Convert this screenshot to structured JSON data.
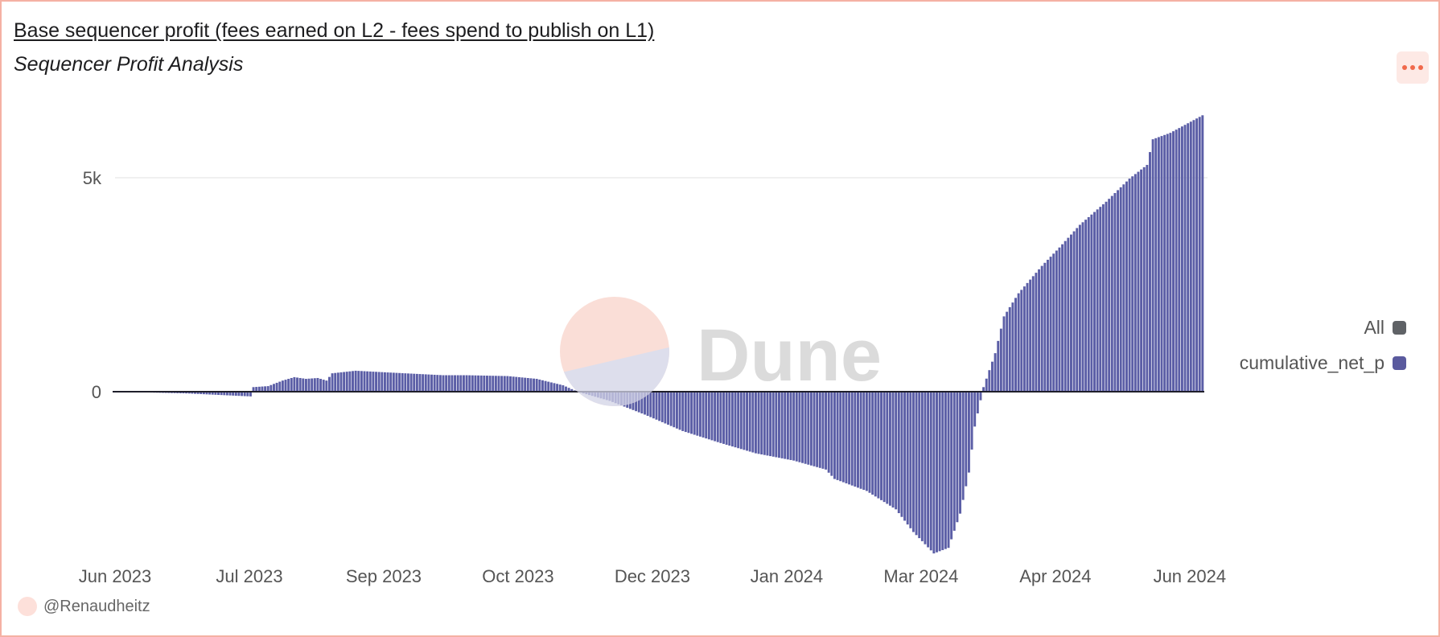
{
  "header": {
    "title": "Base sequencer profit (fees earned on L2 - fees spend to publish on L1)",
    "subtitle": "Sequencer Profit Analysis",
    "menu_icon": "more-horizontal-icon"
  },
  "legend": [
    {
      "label": "All",
      "color": "#5f6266"
    },
    {
      "label": "cumulative_net_p",
      "color": "#5a5a9e"
    }
  ],
  "footer": {
    "author": "@Renaudheitz"
  },
  "watermark": {
    "text": "Dune"
  },
  "chart_data": {
    "type": "bar",
    "title": "Base sequencer profit (fees earned on L2 - fees spend to publish on L1)",
    "xlabel": "",
    "ylabel": "",
    "x_start": "2023-06-01",
    "x_interval": "day",
    "days": 373,
    "ylim": [
      -3800,
      6600
    ],
    "grid": true,
    "legend_position": "right",
    "y_ticks": [
      {
        "value": 0,
        "label": "0"
      },
      {
        "value": 5000,
        "label": "5k"
      }
    ],
    "x_ticks": [
      {
        "day": 0,
        "label": "Jun 2023"
      },
      {
        "day": 46,
        "label": "Jul 2023"
      },
      {
        "day": 92,
        "label": "Sep 2023"
      },
      {
        "day": 138,
        "label": "Oct 2023"
      },
      {
        "day": 184,
        "label": "Dec 2023"
      },
      {
        "day": 230,
        "label": "Jan 2024"
      },
      {
        "day": 276,
        "label": "Mar 2024"
      },
      {
        "day": 322,
        "label": "Apr 2024"
      },
      {
        "day": 368,
        "label": "Jun 2024"
      }
    ],
    "series": [
      {
        "name": "cumulative_net_p",
        "color": "#5b5ea6",
        "keypoints_day_value": [
          [
            0,
            0
          ],
          [
            24,
            -40
          ],
          [
            46,
            -110
          ],
          [
            47,
            107
          ],
          [
            52,
            130
          ],
          [
            57,
            260
          ],
          [
            61,
            340
          ],
          [
            65,
            300
          ],
          [
            69,
            320
          ],
          [
            72,
            260
          ],
          [
            74,
            430
          ],
          [
            82,
            490
          ],
          [
            93,
            450
          ],
          [
            112,
            385
          ],
          [
            120,
            385
          ],
          [
            134,
            365
          ],
          [
            144,
            300
          ],
          [
            153,
            150
          ],
          [
            158,
            0
          ],
          [
            169,
            -215
          ],
          [
            181,
            -535
          ],
          [
            194,
            -920
          ],
          [
            207,
            -1200
          ],
          [
            219,
            -1440
          ],
          [
            232,
            -1610
          ],
          [
            243,
            -1820
          ],
          [
            246,
            -2040
          ],
          [
            257,
            -2320
          ],
          [
            267,
            -2750
          ],
          [
            273,
            -3280
          ],
          [
            280,
            -3780
          ],
          [
            285,
            -3650
          ],
          [
            289,
            -2850
          ],
          [
            292,
            -1890
          ],
          [
            294,
            -815
          ],
          [
            297,
            107
          ],
          [
            301,
            900
          ],
          [
            304,
            1760
          ],
          [
            309,
            2300
          ],
          [
            317,
            2940
          ],
          [
            323,
            3370
          ],
          [
            330,
            3900
          ],
          [
            339,
            4440
          ],
          [
            347,
            4980
          ],
          [
            353,
            5300
          ],
          [
            355,
            5900
          ],
          [
            361,
            6050
          ],
          [
            372,
            6460
          ]
        ]
      }
    ]
  }
}
